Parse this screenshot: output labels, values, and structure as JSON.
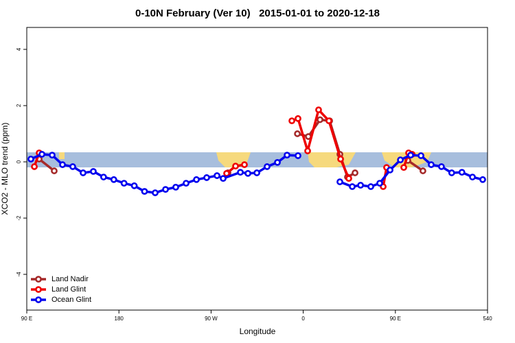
{
  "chart_data": {
    "type": "line",
    "title": "0-10N February (Ver 10)   2015-01-01 to 2020-12-18",
    "x_label": "Longitude",
    "y_label": "XCO2 - MLO trend (ppm)",
    "xlim": [
      90,
      540
    ],
    "ylim": [
      -5.27,
      4.78
    ],
    "xticks": [
      {
        "value": 90,
        "label": "90 E"
      },
      180,
      {
        "value": 270,
        "label": "90 W"
      },
      {
        "value": 360,
        "label": "0"
      },
      {
        "value": 450,
        "label": "90 E"
      },
      540
    ],
    "yticks": [
      -4,
      -2,
      0,
      2,
      4
    ],
    "legend": "lower left",
    "series": [
      {
        "name": "Land Nadir",
        "color": "#a52a2a",
        "x": [
          102.1,
          116.8,
          200,
          286.5,
          320,
          354.3,
          365,
          376.4,
          385.8,
          395.8,
          403.2,
          410.6,
          440,
          462.2,
          476.9
        ],
        "values": [
          0.1,
          -0.32,
          null,
          -0.39,
          null,
          1.0,
          0.9,
          1.5,
          1.46,
          0.27,
          -0.54,
          -0.39,
          null,
          0.05,
          -0.32
        ]
      },
      {
        "name": "Land Glint",
        "color": "#ee0000",
        "x": [
          97.4,
          102.1,
          200,
          285.2,
          293.9,
          302.6,
          330,
          348.9,
          354.9,
          364.3,
          375,
          385.1,
          396.5,
          404.5,
          420,
          438.1,
          441.4,
          450,
          458.2,
          462.9,
          466.3
        ],
        "values": [
          -0.17,
          0.32,
          null,
          -0.41,
          -0.15,
          -0.1,
          null,
          1.46,
          1.54,
          0.39,
          1.85,
          1.46,
          0.1,
          -0.59,
          null,
          -0.88,
          -0.2,
          null,
          -0.2,
          0.32,
          0.27
        ]
      },
      {
        "name": "Ocean Glint",
        "color": "#0000ee",
        "x": [
          94,
          104.8,
          114.8,
          124.9,
          134.9,
          145,
          155,
          165,
          175,
          185,
          195,
          205,
          215.4,
          225.5,
          235.5,
          245.6,
          255.7,
          265.7,
          275.8,
          281.8,
          298.6,
          306,
          314.7,
          324.7,
          334.8,
          344.2,
          354.9,
          375,
          395.8,
          407.9,
          416,
          426,
          434.7,
          444.8,
          454.9,
          464.9,
          475,
          485,
          495,
          505,
          515,
          525.3,
          535.3
        ],
        "values": [
          0.1,
          0.27,
          0.24,
          -0.1,
          -0.17,
          -0.39,
          -0.34,
          -0.54,
          -0.63,
          -0.76,
          -0.85,
          -1.05,
          -1.1,
          -0.98,
          -0.9,
          -0.76,
          -0.63,
          -0.56,
          -0.49,
          -0.59,
          -0.37,
          -0.41,
          -0.39,
          -0.17,
          -0.02,
          0.24,
          0.22,
          null,
          -0.71,
          -0.88,
          -0.83,
          -0.88,
          -0.76,
          -0.29,
          0.07,
          0.24,
          0.22,
          -0.1,
          -0.17,
          -0.39,
          -0.37,
          -0.54,
          -0.63
        ]
      }
    ]
  }
}
